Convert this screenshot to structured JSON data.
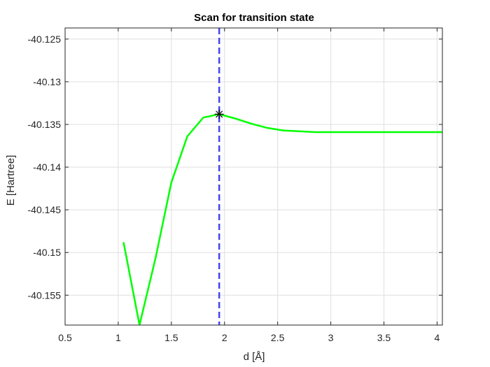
{
  "chart_data": {
    "type": "line",
    "title": "Scan for transition state",
    "xlabel": "d [Å]",
    "ylabel": "E [Hartree]",
    "xlim": [
      0.5,
      4.05
    ],
    "ylim": [
      -40.1585,
      -40.1237
    ],
    "xticks": [
      0.5,
      1,
      1.5,
      2,
      2.5,
      3,
      3.5,
      4
    ],
    "xtick_labels": [
      "0.5",
      "1",
      "1.5",
      "2",
      "2.5",
      "3",
      "3.5",
      "4"
    ],
    "yticks": [
      -40.125,
      -40.13,
      -40.135,
      -40.14,
      -40.145,
      -40.15,
      -40.155
    ],
    "ytick_labels": [
      "-40.125",
      "-40.13",
      "-40.135",
      "-40.14",
      "-40.145",
      "-40.15",
      "-40.155"
    ],
    "grid": true,
    "series": [
      {
        "color": "#00ff00",
        "x": [
          1.05,
          1.2,
          1.35,
          1.5,
          1.65,
          1.8,
          1.95,
          2.1,
          2.25,
          2.4,
          2.55,
          2.7,
          2.85,
          3.0,
          3.2,
          3.4,
          3.6,
          3.8,
          4.05
        ],
        "y": [
          -40.1488,
          -40.1585,
          -40.1507,
          -40.1418,
          -40.1364,
          -40.1342,
          -40.1338,
          -40.1343,
          -40.1349,
          -40.1354,
          -40.1357,
          -40.1358,
          -40.1359,
          -40.1359,
          -40.1359,
          -40.1359,
          -40.1359,
          -40.1359,
          -40.1359
        ]
      }
    ],
    "vline": {
      "x": 1.95,
      "color": "#4444ee",
      "style": "dashed"
    },
    "marker": {
      "x": 1.95,
      "y": -40.1338,
      "symbol": "asterisk",
      "color": "#000000"
    }
  }
}
